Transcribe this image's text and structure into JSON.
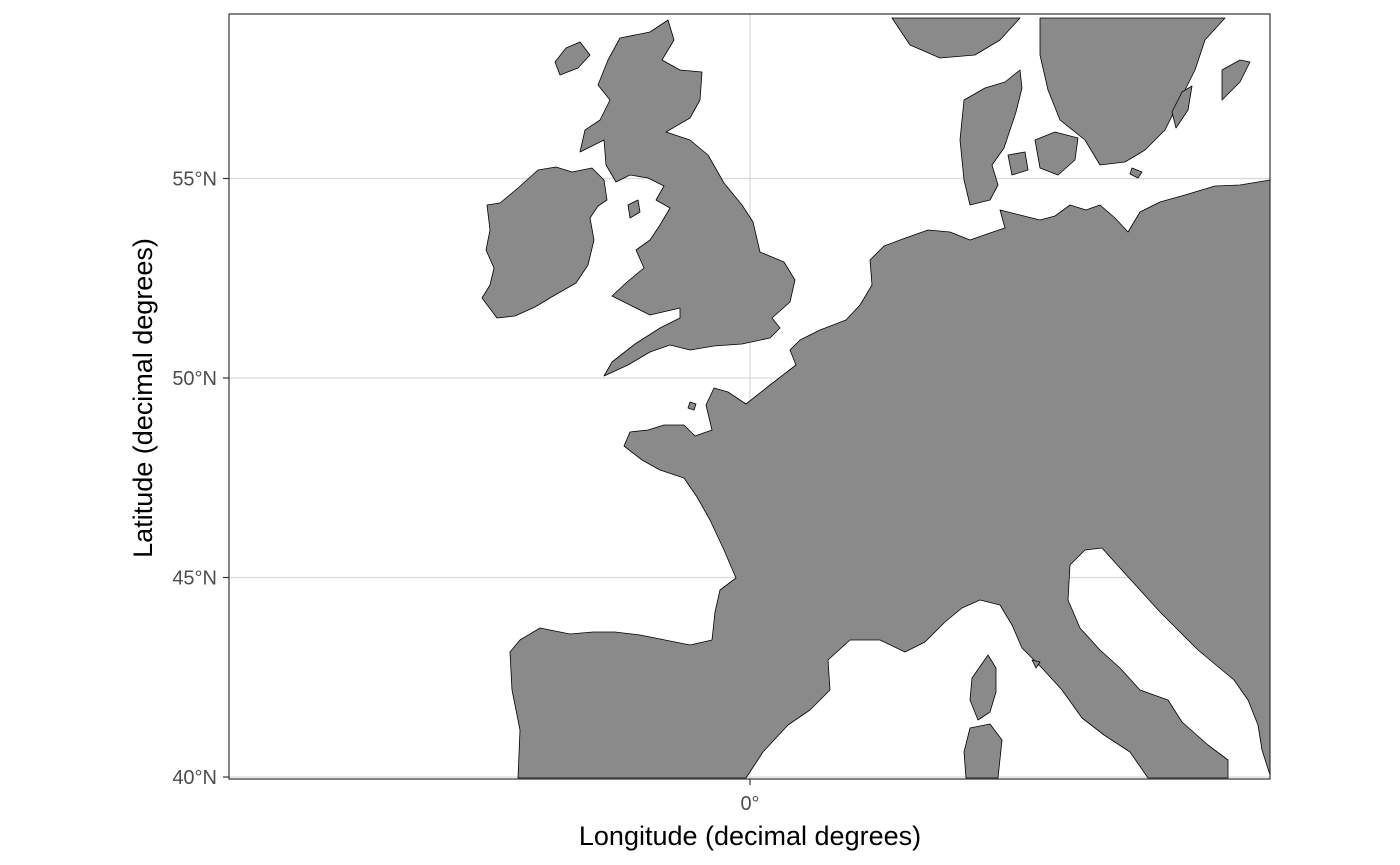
{
  "map": {
    "x_axis": {
      "title": "Longitude (decimal degrees)",
      "ticks": [
        {
          "value": 0,
          "label": "0°"
        }
      ]
    },
    "y_axis": {
      "title": "Latitude (decimal degrees)",
      "ticks": [
        {
          "value": 40,
          "label": "40°N"
        },
        {
          "value": 45,
          "label": "45°N"
        },
        {
          "value": 50,
          "label": "50°N"
        },
        {
          "value": 55,
          "label": "55°N"
        }
      ]
    },
    "extent": {
      "lon_range": [
        -13,
        13
      ],
      "lat_range": [
        40,
        59
      ]
    },
    "grid": true,
    "colors": {
      "land": "#8a8a8a",
      "coastline": "#000000",
      "grid": "#d9d9d9",
      "frame": "#333333"
    }
  }
}
